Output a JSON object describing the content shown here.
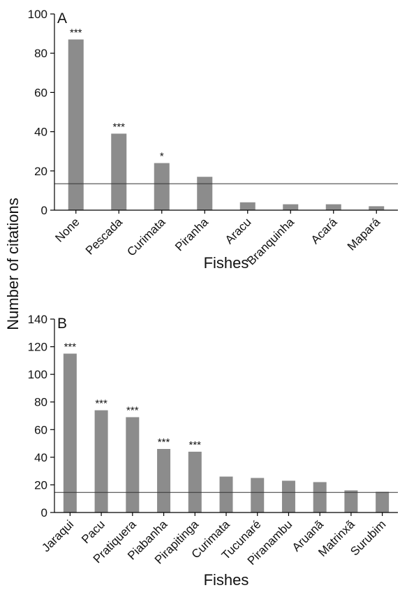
{
  "figure": {
    "ylabel": "Number of citations"
  },
  "chart_data": [
    {
      "type": "bar",
      "panel": "A",
      "xlabel": "Fishes",
      "ylim": [
        0,
        100
      ],
      "yticks": [
        0,
        20,
        40,
        60,
        80,
        100
      ],
      "categories": [
        "None",
        "Pescada",
        "Curimata",
        "Piranha",
        "Aracu",
        "Branquinha",
        "Acará",
        "Mapará"
      ],
      "values": [
        87,
        39,
        24,
        17,
        4,
        3,
        3,
        2
      ],
      "significance": [
        "***",
        "***",
        "*",
        "",
        "",
        "",
        "",
        ""
      ],
      "reference_line": 13.5,
      "bar_color": "#8c8c8c"
    },
    {
      "type": "bar",
      "panel": "B",
      "xlabel": "Fishes",
      "ylim": [
        0,
        140
      ],
      "yticks": [
        0,
        20,
        40,
        60,
        80,
        100,
        120,
        140
      ],
      "categories": [
        "Jaraqui",
        "Pacu",
        "Pratiquera",
        "Piabanha",
        "Pirapitinga",
        "Curimata",
        "Tucunaré",
        "Piranambu",
        "Aruanã",
        "Matrinxã",
        "Surubim"
      ],
      "values": [
        115,
        74,
        69,
        46,
        44,
        26,
        25,
        23,
        22,
        16,
        15
      ],
      "significance": [
        "***",
        "***",
        "***",
        "***",
        "***",
        "",
        "",
        "",
        "",
        "",
        ""
      ],
      "reference_line": 14.5,
      "bar_color": "#8c8c8c"
    }
  ]
}
